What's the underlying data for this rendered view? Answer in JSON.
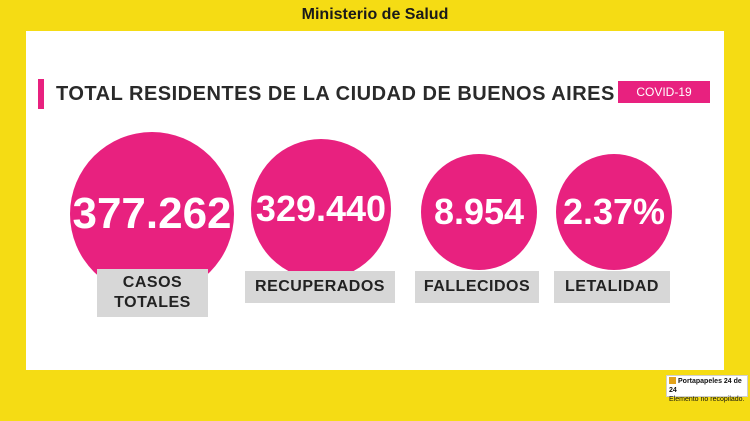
{
  "header": {
    "title": "Ministerio de Salud"
  },
  "main": {
    "title": "TOTAL RESIDENTES DE LA CIUDAD DE BUENOS AIRES",
    "badge": "COVID-19"
  },
  "stats": [
    {
      "value": "377.262",
      "label_line1": "CASOS",
      "label_line2": "TOTALES"
    },
    {
      "value": "329.440",
      "label": "RECUPERADOS"
    },
    {
      "value": "8.954",
      "label": "FALLECIDOS"
    },
    {
      "value": "2.37%",
      "label": "LETALIDAD"
    }
  ],
  "clipboard": {
    "title": "Portapapeles 24 de 24",
    "subtitle": "Elemento no recopilado.",
    "icon": "clipboard-icon"
  },
  "colors": {
    "accent": "#e8217f",
    "frame": "#f5dc14",
    "label_bg": "#d7d7d7"
  }
}
